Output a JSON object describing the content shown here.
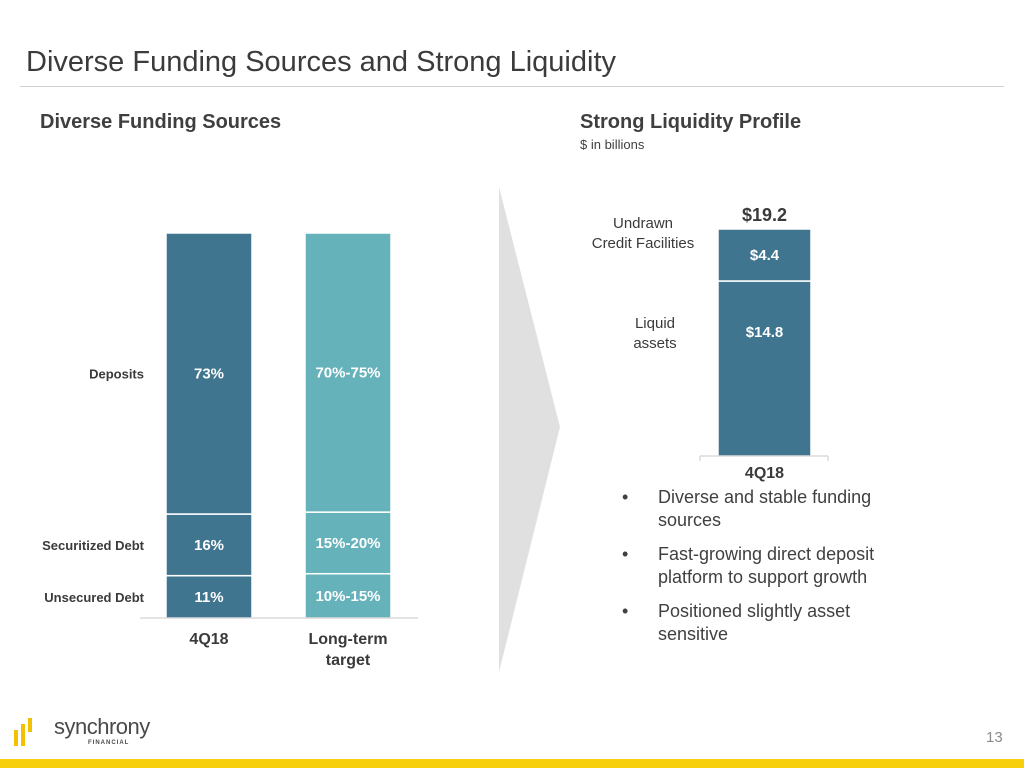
{
  "slide": {
    "title": "Diverse Funding Sources and Strong Liquidity",
    "page_number": "13"
  },
  "left": {
    "heading": "Diverse Funding Sources"
  },
  "right": {
    "heading": "Strong Liquidity Profile",
    "subheading": "$ in billions",
    "bullets": [
      "Diverse and stable funding sources",
      "Fast-growing direct deposit platform to support growth",
      "Positioned slightly asset sensitive"
    ],
    "bullet_glyph": "•"
  },
  "logo": {
    "name": "synchrony",
    "sub": "FINANCIAL"
  },
  "colors": {
    "dark_teal": "#3f758f",
    "light_teal": "#66b2bb",
    "arrow_gray": "#e0e0e0",
    "brand_yellow": "#f7cf0a"
  },
  "chart_data": [
    {
      "type": "bar",
      "stacked": true,
      "title": "Diverse Funding Sources",
      "categories": [
        "4Q18",
        "Long-term target"
      ],
      "category_lines": [
        [
          "4Q18"
        ],
        [
          "Long-term",
          "target"
        ]
      ],
      "segments_order": [
        "Unsecured Debt",
        "Securitized Debt",
        "Deposits"
      ],
      "series": [
        {
          "name": "Deposits",
          "values": [
            73,
            72.5
          ],
          "labels": [
            "73%",
            "70%-75%"
          ]
        },
        {
          "name": "Securitized Debt",
          "values": [
            16,
            16
          ],
          "labels": [
            "16%",
            "15%-20%"
          ]
        },
        {
          "name": "Unsecured Debt",
          "values": [
            11,
            11.5
          ],
          "labels": [
            "11%",
            "10%-15%"
          ]
        }
      ],
      "bar_colors": [
        "#3f758f",
        "#66b2bb"
      ],
      "ylim": [
        0,
        100
      ],
      "unit": "%"
    },
    {
      "type": "bar",
      "stacked": true,
      "title": "Strong Liquidity Profile",
      "subtitle": "$ in billions",
      "categories": [
        "4Q18"
      ],
      "series": [
        {
          "name": "Liquid assets",
          "name_lines": [
            "Liquid",
            "assets"
          ],
          "values": [
            14.8
          ],
          "labels": [
            "$14.8"
          ]
        },
        {
          "name": "Undrawn Credit Facilities",
          "name_lines": [
            "Undrawn",
            "Credit Facilities"
          ],
          "values": [
            4.4
          ],
          "labels": [
            "$4.4"
          ]
        }
      ],
      "total": {
        "value": 19.2,
        "label": "$19.2"
      },
      "bar_color": "#3f758f",
      "unit": "$B"
    }
  ]
}
